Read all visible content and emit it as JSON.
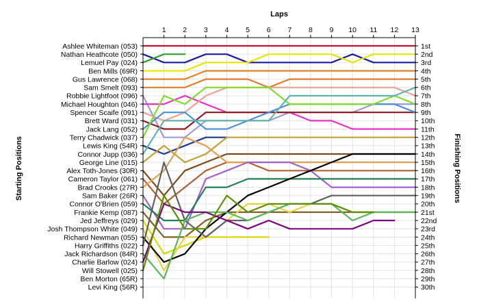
{
  "chart_data": {
    "type": "line",
    "title": "",
    "xlabel": "Laps",
    "ylabel_left": "Starting Positions",
    "ylabel_right": "Finishing Positions",
    "laps": [
      1,
      2,
      3,
      4,
      5,
      6,
      7,
      8,
      9,
      10,
      11,
      12,
      13
    ],
    "xlim": [
      0,
      13
    ],
    "ylim": [
      1,
      30
    ],
    "grid": true,
    "drivers": [
      "Ashlee Whiteman (053)",
      "Nathan Heathcote (050)",
      "Lemuel Pay (024)",
      "Ben Mills (69R)",
      "Gus Lawrence (068)",
      "Sam Smelt (093)",
      "Robbie Lightfoot (096)",
      "Michael Houghton (046)",
      "Spencer Scaife (091)",
      "Brett Ward (031)",
      "Jack Lang (052)",
      "Terry Chadwick (037)",
      "Lewis King (54R)",
      "Connor Jupp (036)",
      "George Line (015)",
      "Alex Toth-Jones (30R)",
      "Cameron Taylor (061)",
      "Brad Crooks (27R)",
      "Sam Baker (26R)",
      "Connor O'Brien (059)",
      "Frankie Kemp (087)",
      "Jed Jeffreys (029)",
      "Josh Thompson White (049)",
      "Richard Newman (055)",
      "Harry Griffiths (022)",
      "Jack Richardson (84R)",
      "Charlie Barlow (024)",
      "Will Stowell (025)",
      "Ben Morton (65R)",
      "Levi King (56R)"
    ],
    "finishing_labels": [
      "1st",
      "2nd",
      "3rd",
      "4th",
      "5th",
      "6th",
      "7th",
      "8th",
      "9th",
      "10th",
      "11th",
      "12th",
      "13th",
      "14th",
      "15th",
      "16th",
      "17th",
      "18th",
      "19th",
      "20th",
      "21st",
      "22nd",
      "23rd",
      "24th",
      "25th",
      "26th",
      "27th",
      "28th",
      "29th",
      "30th"
    ],
    "series": [
      {
        "start": 1,
        "positions": [
          1,
          1,
          1,
          1,
          1,
          1,
          1,
          1,
          1,
          1,
          1,
          1,
          1
        ],
        "color": "#c8102e"
      },
      {
        "start": 2,
        "positions": [
          3,
          3,
          2,
          2,
          3,
          3,
          3,
          3,
          3,
          2,
          3,
          3,
          3
        ],
        "color": "#1a1aa6"
      },
      {
        "start": 3,
        "positions": [
          2,
          2
        ],
        "color": "#2ca02c"
      },
      {
        "start": 4,
        "positions": [
          4,
          4,
          3,
          3,
          3,
          2,
          2,
          2,
          2,
          3,
          2,
          2,
          2
        ],
        "color": "#e6e600"
      },
      {
        "start": 5,
        "positions": [
          5,
          5,
          4,
          4,
          4,
          4,
          4,
          4,
          4,
          4,
          4,
          4,
          4
        ],
        "color": "#e67e22"
      },
      {
        "start": 6,
        "positions": [
          6,
          6,
          5,
          5,
          5,
          6,
          5,
          5,
          5,
          5,
          5,
          5,
          5
        ],
        "color": "#e07b2e"
      },
      {
        "start": 7,
        "positions": [
          12,
          12,
          10,
          10,
          10,
          10,
          9,
          9,
          9,
          9,
          8,
          8,
          8
        ],
        "color": "#9a9ad8"
      },
      {
        "start": 8,
        "positions": [
          8,
          7,
          8,
          9,
          9,
          9,
          9,
          10,
          10,
          11,
          11,
          11,
          11
        ],
        "color": "#e830c8"
      },
      {
        "start": 9,
        "positions": [
          10,
          9,
          7,
          6,
          6,
          6,
          6,
          6,
          6,
          6,
          6,
          6,
          7
        ],
        "color": "#f0a090"
      },
      {
        "start": 10,
        "positions": [
          11,
          11,
          9,
          9,
          9,
          9,
          9,
          9,
          9,
          9,
          9,
          9,
          9
        ],
        "color": "#8b1a1a"
      },
      {
        "start": 11,
        "positions": [
          9,
          9,
          11,
          11,
          10,
          9,
          8,
          8,
          8,
          8,
          8,
          8,
          9
        ],
        "color": "#4a90d9"
      },
      {
        "start": 12,
        "positions": [
          7,
          8,
          6,
          6,
          6,
          6,
          8,
          8,
          8,
          8,
          8,
          7,
          8
        ],
        "color": "#7fdc2a"
      },
      {
        "start": 13,
        "positions": [
          14,
          13,
          12,
          12
        ],
        "color": "#1f3a93"
      },
      {
        "start": 14,
        "positions": [
          10,
          10,
          10,
          10,
          10,
          10,
          7,
          7,
          7,
          7,
          7,
          7,
          6
        ],
        "color": "#5fb3a8"
      },
      {
        "start": 15,
        "positions": [
          13,
          15,
          14,
          12,
          12,
          12,
          12,
          12,
          12,
          12,
          12,
          12,
          12
        ],
        "color": "#bfa030"
      },
      {
        "start": 16,
        "positions": [
          19,
          16,
          15,
          14,
          14,
          14,
          14,
          14,
          14,
          14,
          14,
          14,
          14
        ],
        "color": "#7a4a1a"
      },
      {
        "start": 17,
        "positions": [
          20,
          18,
          16,
          15,
          15,
          16,
          16,
          16,
          16,
          16,
          16,
          16,
          16
        ],
        "color": "#b06030"
      },
      {
        "start": 18,
        "positions": [
          16,
          12,
          13,
          15,
          15,
          15,
          15,
          15,
          15,
          15,
          15,
          15,
          15
        ],
        "color": "#e0a050"
      },
      {
        "start": 19,
        "positions": [
          23,
          23,
          17,
          16,
          15,
          15,
          15,
          16,
          18,
          18,
          18,
          18,
          18
        ],
        "color": "#a060d0"
      },
      {
        "start": 20,
        "positions": [
          22,
          22,
          18,
          18,
          17,
          17,
          17,
          17,
          17,
          17,
          17,
          17,
          17
        ],
        "color": "#208050"
      },
      {
        "start": 21,
        "positions": [
          24,
          24,
          22,
          21,
          21,
          21,
          21,
          21,
          21,
          21,
          21,
          21,
          21
        ],
        "color": "#806020"
      },
      {
        "start": 22,
        "positions": [
          26,
          25,
          24,
          24,
          24,
          24
        ],
        "color": "#d8d800"
      },
      {
        "start": 23,
        "positions": [
          28,
          24,
          24,
          22,
          20,
          20,
          21,
          20,
          20,
          21,
          21
        ],
        "color": "#e8d040"
      },
      {
        "start": 24,
        "positions": [
          27,
          26,
          23,
          21,
          19,
          18,
          17,
          16,
          15,
          14,
          14,
          14,
          14
        ],
        "color": "#000000"
      },
      {
        "start": 25,
        "positions": [
          15,
          22,
          24,
          22,
          22,
          21,
          20,
          20,
          19,
          19,
          19,
          19,
          19
        ],
        "color": "#606060"
      },
      {
        "start": 26,
        "positions": [
          29,
          22,
          21,
          21,
          22,
          21,
          20,
          20,
          20,
          22,
          21,
          21,
          21
        ],
        "color": "#58b858"
      },
      {
        "start": 27,
        "positions": [
          20,
          21,
          21,
          22,
          23,
          22,
          23,
          23,
          23,
          23,
          22,
          22
        ],
        "color": "#800080"
      },
      {
        "start": 28,
        "positions": [
          19,
          23,
          23,
          19,
          21,
          20,
          20,
          20,
          20,
          21,
          21
        ],
        "color": "#5a8f00"
      },
      {
        "start": 29,
        "positions": [],
        "color": "#999999"
      },
      {
        "start": 30,
        "positions": [],
        "color": "#999999"
      }
    ]
  }
}
